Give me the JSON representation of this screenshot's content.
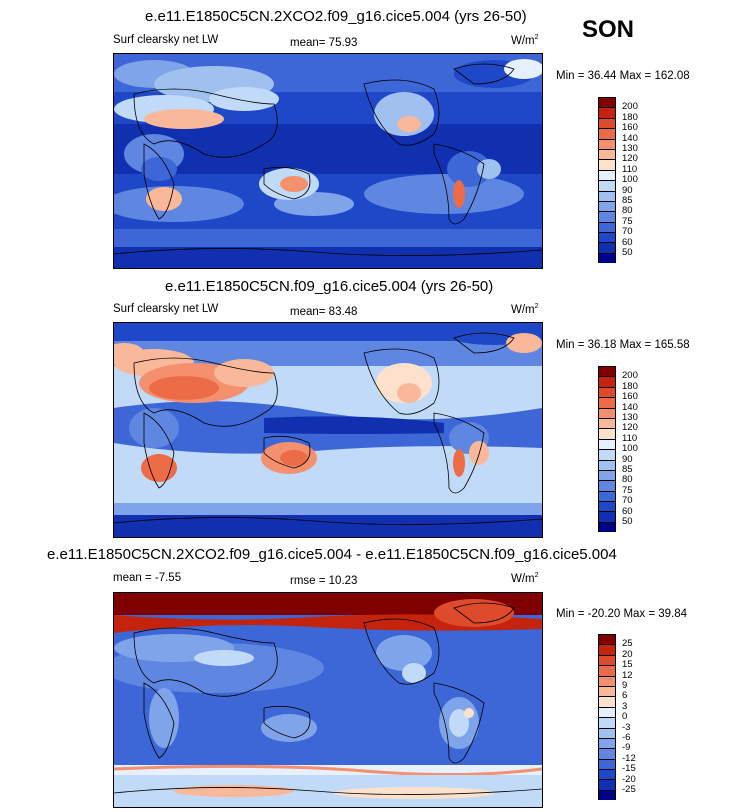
{
  "season": "SON",
  "panels": [
    {
      "title": "e.e11.E1850C5CN.2XCO2.f09_g16.cice5.004 (yrs 26-50)",
      "left_label": "Surf clearsky net LW",
      "center_label": "mean=  75.93",
      "units": "W/m",
      "units_sup": "2",
      "minmax": "Min =  36.44 Max = 162.08",
      "levels": [
        "200",
        "180",
        "160",
        "140",
        "130",
        "120",
        "110",
        "100",
        "90",
        "85",
        "80",
        "75",
        "70",
        "60",
        "50"
      ],
      "colors": [
        "#800000",
        "#c4230e",
        "#dd4b2a",
        "#ed6c48",
        "#f5906e",
        "#fab89a",
        "#fde1cc",
        "#e6f0ff",
        "#c0daf7",
        "#a0c0f0",
        "#80a4ea",
        "#5f86e0",
        "#3d66d6",
        "#1f48c8",
        "#1030b0",
        "#000088"
      ]
    },
    {
      "title": "e.e11.E1850C5CN.f09_g16.cice5.004 (yrs 26-50)",
      "left_label": "Surf clearsky net LW",
      "center_label": "mean=  83.48",
      "units": "W/m",
      "units_sup": "2",
      "minmax": "Min =  36.18 Max = 165.58",
      "levels": [
        "200",
        "180",
        "160",
        "140",
        "130",
        "120",
        "110",
        "100",
        "90",
        "85",
        "80",
        "75",
        "70",
        "60",
        "50"
      ],
      "colors": [
        "#800000",
        "#c4230e",
        "#dd4b2a",
        "#ed6c48",
        "#f5906e",
        "#fab89a",
        "#fde1cc",
        "#e6f0ff",
        "#c0daf7",
        "#a0c0f0",
        "#80a4ea",
        "#5f86e0",
        "#3d66d6",
        "#1f48c8",
        "#1030b0",
        "#000088"
      ]
    },
    {
      "title": "e.e11.E1850C5CN.2XCO2.f09_g16.cice5.004 - e.e11.E1850C5CN.f09_g16.cice5.004",
      "left_label": "mean =  -7.55",
      "center_label": "rmse =  10.23",
      "units": "W/m",
      "units_sup": "2",
      "minmax": "Min = -20.20 Max =  39.84",
      "levels": [
        "25",
        "20",
        "15",
        "12",
        "9",
        "6",
        "3",
        "0",
        "-3",
        "-6",
        "-9",
        "-12",
        "-15",
        "-20",
        "-25"
      ],
      "colors": [
        "#800000",
        "#c4230e",
        "#dd4b2a",
        "#ed6c48",
        "#f5906e",
        "#fab89a",
        "#fde1cc",
        "#e6f0ff",
        "#c0daf7",
        "#a0c0f0",
        "#80a4ea",
        "#5f86e0",
        "#3d66d6",
        "#1f48c8",
        "#1030b0",
        "#000088"
      ]
    }
  ],
  "chart_data": [
    {
      "type": "heatmap",
      "title": "e.e11.E1850C5CN.2XCO2.f09_g16.cice5.004 (yrs 26-50)",
      "variable": "Surf clearsky net LW",
      "units": "W/m2",
      "mean": 75.93,
      "min": 36.44,
      "max": 162.08,
      "contour_levels": [
        50,
        60,
        70,
        75,
        80,
        85,
        90,
        100,
        110,
        120,
        130,
        140,
        160,
        180,
        200
      ]
    },
    {
      "type": "heatmap",
      "title": "e.e11.E1850C5CN.f09_g16.cice5.004 (yrs 26-50)",
      "variable": "Surf clearsky net LW",
      "units": "W/m2",
      "mean": 83.48,
      "min": 36.18,
      "max": 165.58,
      "contour_levels": [
        50,
        60,
        70,
        75,
        80,
        85,
        90,
        100,
        110,
        120,
        130,
        140,
        160,
        180,
        200
      ]
    },
    {
      "type": "heatmap",
      "title": "e.e11.E1850C5CN.2XCO2.f09_g16.cice5.004 - e.e11.E1850C5CN.f09_g16.cice5.004",
      "units": "W/m2",
      "mean": -7.55,
      "rmse": 10.23,
      "min": -20.2,
      "max": 39.84,
      "contour_levels": [
        -25,
        -20,
        -15,
        -12,
        -9,
        -6,
        -3,
        0,
        3,
        6,
        9,
        12,
        15,
        20,
        25
      ]
    }
  ]
}
